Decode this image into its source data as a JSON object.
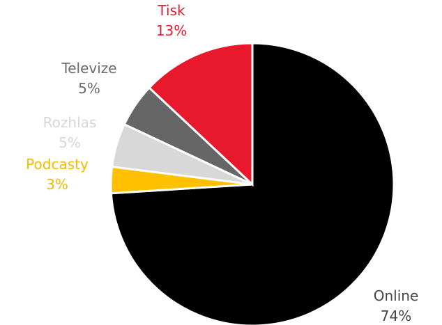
{
  "chart_data": {
    "type": "pie",
    "start_angle_deg": 0,
    "direction": "clockwise",
    "slices": [
      {
        "label": "Online",
        "value": 74,
        "value_label": "74%",
        "color": "#000000",
        "label_color": "#444444"
      },
      {
        "label": "Podcasty",
        "value": 3,
        "value_label": "3%",
        "color": "#FFC000",
        "label_color": "#F2BB00"
      },
      {
        "label": "Rozhlas",
        "value": 5,
        "value_label": "5%",
        "color": "#D8D8D8",
        "label_color": "#D6D6D6"
      },
      {
        "label": "Televize",
        "value": 5,
        "value_label": "5%",
        "color": "#666666",
        "label_color": "#6B6B6B"
      },
      {
        "label": "Tisk",
        "value": 13,
        "value_label": "13%",
        "color": "#E8192C",
        "label_color": "#E8192C"
      }
    ]
  }
}
